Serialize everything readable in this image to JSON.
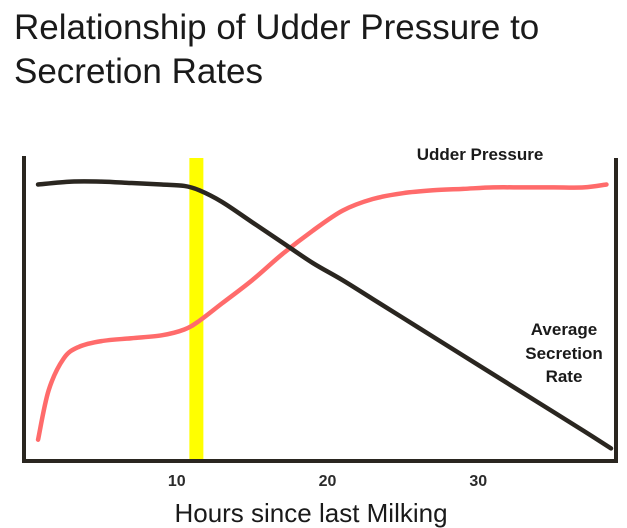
{
  "chart_data": {
    "type": "line",
    "title_lines": [
      "Relationship of Udder Pressure to",
      "Secretion Rates"
    ],
    "xlabel": "Hours since last Milking",
    "xticks": [
      10,
      20,
      30
    ],
    "xlim": [
      0,
      39
    ],
    "ylim": [
      0,
      1
    ],
    "yaxis_labeled": false,
    "highlight": {
      "x": 11.3,
      "color": "#ffff00"
    },
    "series": [
      {
        "name": "Udder Pressure",
        "color": "#ff6b6b",
        "x": [
          0.8,
          1.5,
          2.5,
          3.5,
          5,
          7,
          9,
          10.5,
          11.5,
          13,
          15,
          17,
          19,
          21,
          23,
          25,
          27,
          29,
          31,
          33,
          35,
          37,
          38.5
        ],
        "y": [
          0.07,
          0.24,
          0.35,
          0.39,
          0.41,
          0.42,
          0.43,
          0.45,
          0.48,
          0.54,
          0.62,
          0.71,
          0.79,
          0.86,
          0.9,
          0.92,
          0.93,
          0.935,
          0.94,
          0.94,
          0.94,
          0.94,
          0.95
        ]
      },
      {
        "name": "Average Secretion Rate",
        "color": "#2a2620",
        "x": [
          0.8,
          3,
          5,
          7,
          9,
          10.5,
          11.5,
          13,
          15,
          17,
          19,
          21,
          23,
          25,
          27,
          29,
          31,
          33,
          35,
          37,
          38.8
        ],
        "y": [
          0.95,
          0.96,
          0.96,
          0.955,
          0.95,
          0.945,
          0.93,
          0.89,
          0.82,
          0.75,
          0.68,
          0.62,
          0.555,
          0.49,
          0.425,
          0.36,
          0.295,
          0.23,
          0.165,
          0.1,
          0.04
        ]
      }
    ],
    "annotations": {
      "udder": "Udder Pressure",
      "secretion": [
        "Average",
        "Secretion",
        "Rate"
      ]
    }
  }
}
